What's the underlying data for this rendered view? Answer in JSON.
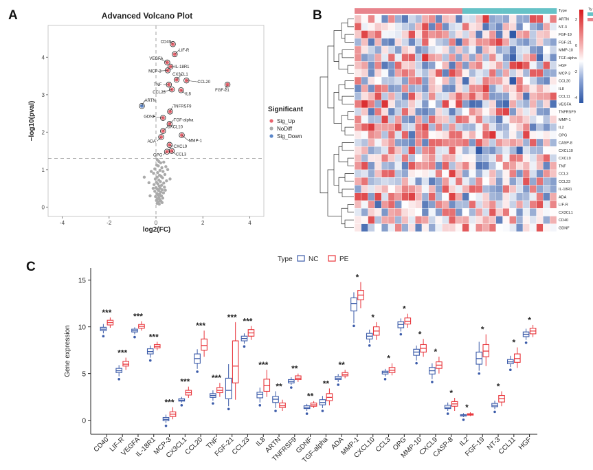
{
  "panels": {
    "a": "A",
    "b": "B",
    "c": "C"
  },
  "colors": {
    "up": "#e8646e",
    "nodiff": "#aaaaaa",
    "down": "#5b86c9",
    "nc": "#3b5ba9",
    "pe": "#e8343a",
    "hm_high": "#d7191c",
    "hm_mid": "#ffffff",
    "hm_low": "#2b55a5",
    "type_nc": "#e8848c",
    "type_pe": "#66c2c7"
  },
  "chart_data": [
    {
      "type": "scatter",
      "title": "Advanced Volcano Plot",
      "xlabel": "log2(FC)",
      "ylabel": "−log10(pval)",
      "xlim": [
        -4.6,
        4.6
      ],
      "ylim": [
        -0.25,
        4.85
      ],
      "xticks": [
        "-4",
        "-2",
        "0",
        "2",
        "4"
      ],
      "yticks": [
        "0",
        "1",
        "2",
        "3",
        "4"
      ],
      "threshold_y": 1.3,
      "threshold_x": 0,
      "legend_title": "Significant",
      "legend": [
        {
          "label": "Sig_Up",
          "color_key": "up"
        },
        {
          "label": "NoDiff",
          "color_key": "nodiff"
        },
        {
          "label": "Sig_Down",
          "color_key": "down"
        }
      ],
      "labeled_points": [
        {
          "name": "CD40",
          "x": 0.72,
          "y": 4.35,
          "group": "up"
        },
        {
          "name": "LIF-R",
          "x": 0.8,
          "y": 4.08,
          "group": "up"
        },
        {
          "name": "VEGFA",
          "x": 0.48,
          "y": 3.86,
          "group": "up"
        },
        {
          "name": "IL-18R1",
          "x": 0.62,
          "y": 3.75,
          "group": "up"
        },
        {
          "name": "MCP-3",
          "x": 0.5,
          "y": 3.65,
          "group": "up"
        },
        {
          "name": "CX3CL1",
          "x": 0.88,
          "y": 3.4,
          "group": "up"
        },
        {
          "name": "TNF",
          "x": 0.55,
          "y": 3.27,
          "group": "up"
        },
        {
          "name": "CCL20",
          "x": 1.3,
          "y": 3.38,
          "group": "up"
        },
        {
          "name": "FGF-21",
          "x": 3.05,
          "y": 3.27,
          "group": "up"
        },
        {
          "name": "CCL23",
          "x": 0.68,
          "y": 3.14,
          "group": "up"
        },
        {
          "name": "IL8",
          "x": 1.07,
          "y": 3.12,
          "group": "up"
        },
        {
          "name": "ARTN",
          "x": -0.6,
          "y": 2.7,
          "group": "down"
        },
        {
          "name": "TNFRSF9",
          "x": 0.6,
          "y": 2.55,
          "group": "up"
        },
        {
          "name": "GDNF",
          "x": 0.3,
          "y": 2.38,
          "group": "up"
        },
        {
          "name": "TGF-alpha",
          "x": 0.58,
          "y": 2.22,
          "group": "up"
        },
        {
          "name": "CXCL10",
          "x": 0.3,
          "y": 2.03,
          "group": "up"
        },
        {
          "name": "ADA",
          "x": 0.22,
          "y": 1.87,
          "group": "up"
        },
        {
          "name": "MMP-1",
          "x": 1.1,
          "y": 1.92,
          "group": "up"
        },
        {
          "name": "CXCL9",
          "x": 0.58,
          "y": 1.66,
          "group": "up"
        },
        {
          "name": "OPG",
          "x": 0.47,
          "y": 1.48,
          "group": "up"
        },
        {
          "name": "CCL3",
          "x": 0.67,
          "y": 1.5,
          "group": "up"
        }
      ],
      "gray_points": [
        [
          0.05,
          1.27
        ],
        [
          0.12,
          1.22
        ],
        [
          0.2,
          1.18
        ],
        [
          0.33,
          1.2
        ],
        [
          0.03,
          1.12
        ],
        [
          0.1,
          1.1
        ],
        [
          0.25,
          1.05
        ],
        [
          0.42,
          1.08
        ],
        [
          -0.05,
          1.02
        ],
        [
          0.17,
          0.98
        ],
        [
          0.3,
          0.95
        ],
        [
          0.07,
          0.92
        ],
        [
          -0.1,
          0.9
        ],
        [
          0.38,
          0.87
        ],
        [
          0.15,
          0.85
        ],
        [
          0.22,
          0.82
        ],
        [
          0.05,
          0.8
        ],
        [
          0.28,
          0.78
        ],
        [
          -0.03,
          0.75
        ],
        [
          0.12,
          0.72
        ],
        [
          0.45,
          0.7
        ],
        [
          0.19,
          0.68
        ],
        [
          0.02,
          0.66
        ],
        [
          0.33,
          0.64
        ],
        [
          0.08,
          0.62
        ],
        [
          -0.08,
          0.6
        ],
        [
          0.24,
          0.58
        ],
        [
          0.14,
          0.56
        ],
        [
          0.36,
          0.53
        ],
        [
          0.0,
          0.52
        ],
        [
          0.18,
          0.5
        ],
        [
          0.06,
          0.48
        ],
        [
          0.27,
          0.46
        ],
        [
          0.11,
          0.44
        ],
        [
          -0.05,
          0.42
        ],
        [
          0.2,
          0.4
        ],
        [
          0.32,
          0.38
        ],
        [
          0.04,
          0.36
        ],
        [
          0.15,
          0.34
        ],
        [
          0.09,
          0.32
        ],
        [
          0.23,
          0.3
        ],
        [
          -0.02,
          0.28
        ],
        [
          0.13,
          0.26
        ],
        [
          0.29,
          0.24
        ],
        [
          0.06,
          0.22
        ],
        [
          0.17,
          0.2
        ],
        [
          0.02,
          0.18
        ],
        [
          0.21,
          0.16
        ],
        [
          0.1,
          0.14
        ],
        [
          0.26,
          0.12
        ],
        [
          0.05,
          0.1
        ],
        [
          0.14,
          0.08
        ],
        [
          -0.5,
          0.8
        ],
        [
          -0.3,
          0.65
        ],
        [
          0.6,
          0.75
        ],
        [
          -0.2,
          0.95
        ],
        [
          0.5,
          1.0
        ],
        [
          -0.12,
          0.5
        ],
        [
          0.4,
          0.45
        ],
        [
          -0.25,
          0.3
        ]
      ]
    },
    {
      "type": "heatmap",
      "title": "",
      "column_annotation_label": "Type",
      "legend_ticks": [
        "2",
        "0",
        "-2",
        "-4"
      ],
      "legend_partial": [
        "Ty"
      ],
      "genes": [
        "ARTN",
        "NT-3",
        "FGF-19",
        "FGF-21",
        "MMP-10",
        "TGF-alpha",
        "HGF",
        "MCP-3",
        "CCL20",
        "IL8",
        "CCL11",
        "VEGFA",
        "TNFRSF9",
        "MMP-1",
        "IL2",
        "OPG",
        "CASP-8",
        "CXCL10",
        "CXCL9",
        "TNF",
        "CCL3",
        "CCL23",
        "IL-18R1",
        "ADA",
        "LIF-R",
        "CX3CL1",
        "CD40",
        "GDNF"
      ],
      "n_columns": 30,
      "n_nc": 16,
      "n_pe": 14
    },
    {
      "type": "box",
      "xlabel": "",
      "ylabel": "Gene expression",
      "ylim": [
        -1.5,
        16.3
      ],
      "yticks": [
        "0",
        "5",
        "10",
        "15"
      ],
      "legend_title": "Type",
      "legend": [
        {
          "label": "NC",
          "color_key": "nc"
        },
        {
          "label": "PE",
          "color_key": "pe"
        }
      ],
      "groups": [
        {
          "gene": "CD40",
          "sig": "***",
          "nc": [
            9.3,
            9.6,
            9.75,
            9.95,
            10.3
          ],
          "pe": [
            9.9,
            10.2,
            10.45,
            10.7,
            11.0
          ]
        },
        {
          "gene": "LIF-R",
          "sig": "***",
          "nc": [
            4.7,
            5.1,
            5.3,
            5.55,
            5.9
          ],
          "pe": [
            5.4,
            5.8,
            6.0,
            6.3,
            6.7
          ]
        },
        {
          "gene": "VEGFA",
          "sig": "***",
          "nc": [
            9.2,
            9.45,
            9.6,
            9.75,
            9.95
          ],
          "pe": [
            9.6,
            9.85,
            10.05,
            10.25,
            10.6
          ]
        },
        {
          "gene": "IL-18R1",
          "sig": "***",
          "nc": [
            6.7,
            7.1,
            7.35,
            7.65,
            8.0
          ],
          "pe": [
            7.5,
            7.75,
            7.9,
            8.1,
            8.4
          ]
        },
        {
          "gene": "MCP-3",
          "sig": "***",
          "nc": [
            -0.3,
            -0.05,
            0.1,
            0.3,
            0.6
          ],
          "pe": [
            0.1,
            0.4,
            0.65,
            0.9,
            1.4
          ]
        },
        {
          "gene": "CX3CL1",
          "sig": "***",
          "nc": [
            1.9,
            2.05,
            2.15,
            2.3,
            2.5
          ],
          "pe": [
            2.4,
            2.7,
            2.95,
            3.2,
            3.6
          ]
        },
        {
          "gene": "CCL20",
          "sig": "***",
          "nc": [
            5.5,
            6.1,
            6.6,
            7.1,
            7.6
          ],
          "pe": [
            6.8,
            7.5,
            8.0,
            8.7,
            9.6
          ]
        },
        {
          "gene": "TNF",
          "sig": "***",
          "nc": [
            2.1,
            2.45,
            2.65,
            2.85,
            3.2
          ],
          "pe": [
            2.5,
            2.95,
            3.2,
            3.5,
            4.0
          ]
        },
        {
          "gene": "FGF-21",
          "sig": "***",
          "nc": [
            1.5,
            2.3,
            3.2,
            4.5,
            6.0
          ],
          "pe": [
            2.2,
            4.0,
            5.8,
            8.5,
            10.5
          ]
        },
        {
          "gene": "CCL23",
          "sig": "***",
          "nc": [
            8.2,
            8.5,
            8.75,
            9.0,
            9.3
          ],
          "pe": [
            8.6,
            9.0,
            9.35,
            9.7,
            10.1
          ]
        },
        {
          "gene": "IL8",
          "sig": "***",
          "nc": [
            1.9,
            2.4,
            2.75,
            3.0,
            3.5
          ],
          "pe": [
            2.5,
            3.1,
            3.7,
            4.4,
            5.4
          ]
        },
        {
          "gene": "ARTN",
          "sig": "**",
          "nc": [
            1.3,
            1.9,
            2.25,
            2.55,
            3.1
          ],
          "pe": [
            1.0,
            1.35,
            1.55,
            1.85,
            2.2
          ]
        },
        {
          "gene": "TNFRSF9",
          "sig": "**",
          "nc": [
            3.8,
            4.0,
            4.15,
            4.35,
            4.6
          ],
          "pe": [
            4.1,
            4.35,
            4.5,
            4.75,
            5.0
          ]
        },
        {
          "gene": "GDNF",
          "sig": "**",
          "nc": [
            1.0,
            1.25,
            1.4,
            1.55,
            1.75
          ],
          "pe": [
            1.3,
            1.5,
            1.65,
            1.85,
            2.05
          ]
        },
        {
          "gene": "TGF-alpha",
          "sig": "**",
          "nc": [
            1.3,
            1.65,
            1.9,
            2.2,
            2.6
          ],
          "pe": [
            1.6,
            2.1,
            2.45,
            2.85,
            3.4
          ]
        },
        {
          "gene": "ADA",
          "sig": "**",
          "nc": [
            4.1,
            4.35,
            4.5,
            4.7,
            4.95
          ],
          "pe": [
            4.5,
            4.75,
            4.9,
            5.1,
            5.4
          ]
        },
        {
          "gene": "MMP-1",
          "sig": "*",
          "nc": [
            10.4,
            11.7,
            12.5,
            13.1,
            13.7
          ],
          "pe": [
            12.0,
            12.9,
            13.4,
            13.9,
            14.8
          ]
        },
        {
          "gene": "CXCL10",
          "sig": "*",
          "nc": [
            8.3,
            8.7,
            9.0,
            9.3,
            9.7
          ],
          "pe": [
            8.6,
            9.1,
            9.55,
            10.0,
            10.5
          ]
        },
        {
          "gene": "CCL3",
          "sig": "*",
          "nc": [
            4.7,
            4.95,
            5.1,
            5.25,
            5.5
          ],
          "pe": [
            4.8,
            5.1,
            5.35,
            5.65,
            6.1
          ]
        },
        {
          "gene": "OPG",
          "sig": "*",
          "nc": [
            9.5,
            9.9,
            10.25,
            10.55,
            10.9
          ],
          "pe": [
            9.9,
            10.3,
            10.6,
            10.95,
            11.4
          ]
        },
        {
          "gene": "MMP-10",
          "sig": "*",
          "nc": [
            6.4,
            6.95,
            7.3,
            7.6,
            8.0
          ],
          "pe": [
            6.8,
            7.3,
            7.7,
            8.1,
            8.7
          ]
        },
        {
          "gene": "CXCL9",
          "sig": "*",
          "nc": [
            4.4,
            4.95,
            5.3,
            5.65,
            6.1
          ],
          "pe": [
            5.0,
            5.55,
            5.9,
            6.25,
            6.8
          ]
        },
        {
          "gene": "CASP-8",
          "sig": "*",
          "nc": [
            1.0,
            1.25,
            1.4,
            1.6,
            1.9
          ],
          "pe": [
            1.0,
            1.5,
            1.75,
            2.0,
            2.4
          ]
        },
        {
          "gene": "IL2",
          "sig": "*",
          "nc": [
            0.35,
            0.45,
            0.5,
            0.6,
            0.75
          ],
          "pe": [
            0.45,
            0.55,
            0.62,
            0.7,
            0.85
          ]
        },
        {
          "gene": "FGF-19",
          "sig": "*",
          "nc": [
            5.3,
            6.0,
            6.6,
            7.3,
            8.4
          ],
          "pe": [
            5.8,
            6.8,
            7.4,
            8.1,
            9.2
          ]
        },
        {
          "gene": "NT-3",
          "sig": "*",
          "nc": [
            1.2,
            1.45,
            1.6,
            1.8,
            2.1
          ],
          "pe": [
            1.5,
            1.95,
            2.3,
            2.65,
            3.1
          ]
        },
        {
          "gene": "CCL11",
          "sig": "*",
          "nc": [
            5.7,
            6.05,
            6.25,
            6.5,
            6.9
          ],
          "pe": [
            5.6,
            6.2,
            6.6,
            7.1,
            7.8
          ]
        },
        {
          "gene": "HGF",
          "sig": "*",
          "nc": [
            8.6,
            8.95,
            9.2,
            9.45,
            9.8
          ],
          "pe": [
            8.9,
            9.25,
            9.55,
            9.85,
            10.2
          ]
        }
      ]
    }
  ]
}
